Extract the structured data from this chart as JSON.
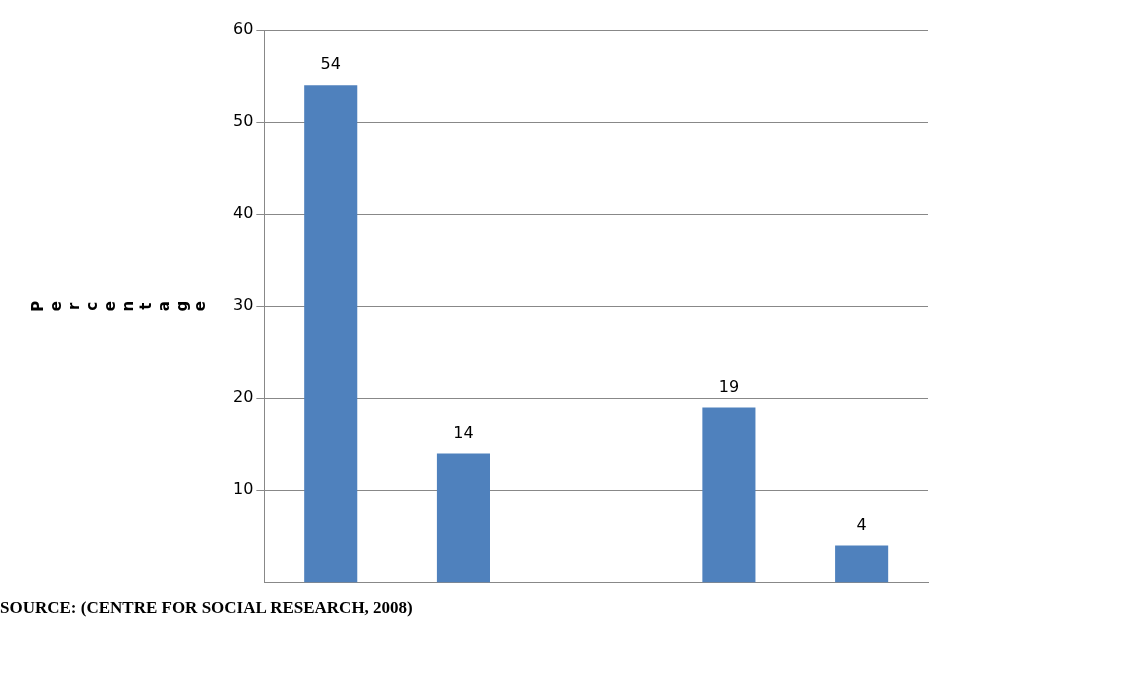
{
  "chart_data": {
    "type": "bar",
    "ylabel": "Percentage",
    "categories": [
      null,
      null,
      null,
      null,
      null
    ],
    "values": [
      54,
      14,
      null,
      19,
      4
    ],
    "color": "#4f81bd",
    "ylim": [
      0,
      60
    ],
    "yticks": [
      10,
      20,
      30,
      40,
      50,
      60
    ],
    "grid": "y",
    "data_labels": true,
    "annotations": [
      "SOURCE: (CENTRE FOR SOCIAL RESEARCH, 2008)"
    ]
  }
}
